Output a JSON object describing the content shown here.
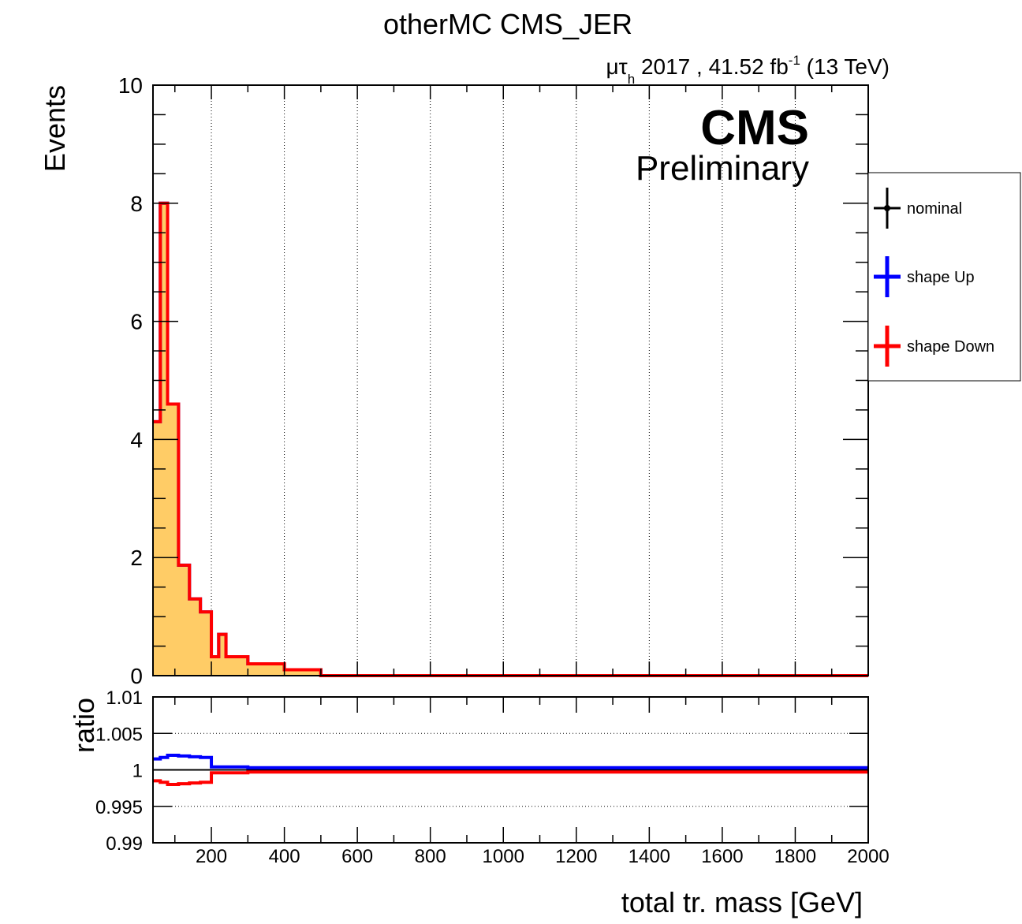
{
  "title": "otherMC CMS_JER",
  "header": {
    "channel_mu": "μτ",
    "channel_sub": "h",
    "lumi_text": " 2017 , 41.52 fb",
    "lumi_exp": "-1",
    "energy": " (13 TeV)"
  },
  "cms_label": "CMS",
  "preliminary_label": "Preliminary",
  "colors": {
    "fill": "#ffcc66",
    "nominal": "#000000",
    "up": "#0000ff",
    "down": "#ff0000"
  },
  "chart_data": [
    {
      "type": "histogram",
      "ylabel": "Events",
      "xlim": [
        40,
        2000
      ],
      "ylim": [
        0,
        10
      ],
      "y_ticks": [
        "0",
        "2",
        "4",
        "6",
        "8",
        "10"
      ],
      "x_grid": true,
      "legend_position": "right, outside the frame",
      "legend": [
        "nominal",
        "shape Up",
        "shape Down"
      ],
      "bin_edges": [
        40,
        60,
        80,
        110,
        140,
        170,
        200,
        220,
        240,
        260,
        300,
        350,
        400,
        500,
        2000
      ],
      "series": [
        {
          "name": "nominal",
          "values": [
            4.3,
            8.0,
            4.6,
            1.87,
            1.3,
            1.08,
            0.32,
            0.7,
            0.32,
            0.32,
            0.2,
            0.2,
            0.1,
            0.0
          ]
        },
        {
          "name": "shape Up",
          "values": [
            4.3,
            8.0,
            4.6,
            1.87,
            1.3,
            1.08,
            0.32,
            0.7,
            0.32,
            0.32,
            0.2,
            0.2,
            0.1,
            0.0
          ]
        },
        {
          "name": "shape Down",
          "values": [
            4.3,
            8.0,
            4.6,
            1.87,
            1.3,
            1.08,
            0.32,
            0.7,
            0.32,
            0.32,
            0.2,
            0.2,
            0.1,
            0.0
          ]
        }
      ]
    },
    {
      "type": "line",
      "ylabel": "ratio",
      "xlabel": "total tr. mass [GeV]",
      "xlim": [
        40,
        2000
      ],
      "ylim": [
        0.99,
        1.01
      ],
      "y_ticks": [
        "0.99",
        "0.995",
        "1",
        "1.005",
        "1.01"
      ],
      "x_ticks": [
        "200",
        "400",
        "600",
        "800",
        "1000",
        "1200",
        "1400",
        "1600",
        "1800",
        "2000"
      ],
      "bin_edges": [
        40,
        60,
        80,
        110,
        140,
        170,
        200,
        220,
        240,
        260,
        300,
        350,
        400,
        500,
        2000
      ],
      "reference_line": 1.0,
      "series": [
        {
          "name": "shape Up",
          "values": [
            1.0015,
            1.0017,
            1.002,
            1.0019,
            1.0018,
            1.0017,
            1.0004,
            1.0004,
            1.0004,
            1.0004,
            1.0003,
            1.0003,
            1.0003,
            1.0003
          ]
        },
        {
          "name": "shape Down",
          "values": [
            0.9985,
            0.9983,
            0.998,
            0.9981,
            0.9982,
            0.9983,
            0.9996,
            0.9996,
            0.9996,
            0.9996,
            0.9997,
            0.9997,
            0.9997,
            0.9997
          ]
        }
      ]
    }
  ]
}
